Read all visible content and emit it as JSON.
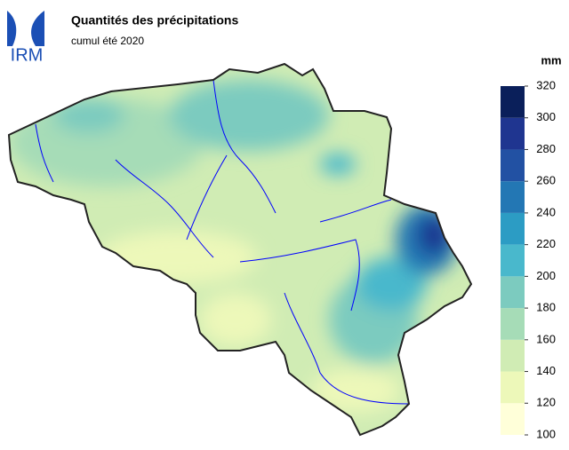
{
  "logo": {
    "text": "IRM"
  },
  "header": {
    "title": "Quantités des précipitations",
    "subtitle": "cumul été 2020"
  },
  "legend": {
    "unit": "mm",
    "ticks": [
      100,
      120,
      140,
      160,
      180,
      200,
      220,
      240,
      260,
      280,
      300,
      320
    ],
    "colors": [
      "#ffffd9",
      "#edf8b9",
      "#d0ecb4",
      "#a6dcb7",
      "#7ccbbf",
      "#49b8cc",
      "#2c9cc4",
      "#2377b4",
      "#2251a3",
      "#1f3590",
      "#0a1f5a"
    ]
  }
}
